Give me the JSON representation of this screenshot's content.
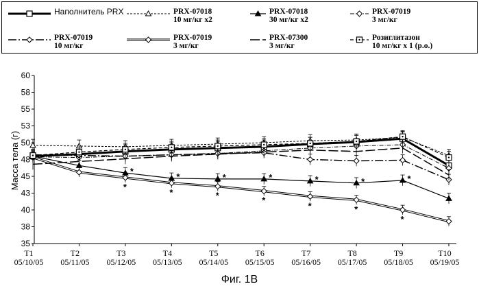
{
  "caption": "Фиг. 1В",
  "chart_data": {
    "type": "line",
    "title": "",
    "xlabel": "",
    "ylabel": "Масса тела (г)",
    "ylim": [
      35,
      60
    ],
    "y_ticks": [
      "35",
      "38",
      "40",
      "43",
      "45",
      "48",
      "50",
      "53",
      "55",
      "58",
      "60"
    ],
    "categories": [
      {
        "label": "T1",
        "date": "05/10/05"
      },
      {
        "label": "T2",
        "date": "05/11/05"
      },
      {
        "label": "T3",
        "date": "05/12/05"
      },
      {
        "label": "T4",
        "date": "05/13/05"
      },
      {
        "label": "T5",
        "date": "05/14/05"
      },
      {
        "label": "T6",
        "date": "05/15/05"
      },
      {
        "label": "T7",
        "date": "05/16/05"
      },
      {
        "label": "T8",
        "date": "05/17/05"
      },
      {
        "label": "T9",
        "date": "05/18/05"
      },
      {
        "label": "T10",
        "date": "05/19/05"
      }
    ],
    "grid": false,
    "legend_position": "top",
    "significance_marker": "*",
    "series": [
      {
        "legend_line1": "Наполнитель PRX",
        "legend_line2": "",
        "style": "thick",
        "marker": "square",
        "values": [
          48,
          48.3,
          48.7,
          49,
          49.2,
          49.4,
          49.8,
          50.1,
          50.6,
          46.6
        ],
        "errors": 1.0,
        "marked": []
      },
      {
        "legend_line1": "PRX-07018",
        "legend_line2": "10 мг/кг  x2",
        "style": "dashed-fine",
        "marker": "triangle-open",
        "values": [
          49.6,
          49.5,
          49.4,
          49.6,
          49.8,
          50,
          50.3,
          50.4,
          50.8,
          48.1
        ],
        "errors": 0.9,
        "marked": []
      },
      {
        "legend_line1": "PRX-07018",
        "legend_line2": "30 мг/кг  x2",
        "style": "solid",
        "marker": "triangle-filled",
        "values": [
          48,
          46.6,
          45.5,
          44.7,
          44.6,
          44.6,
          44.3,
          44,
          44.4,
          41.7
        ],
        "errors": 0.8,
        "marked": [
          2,
          3,
          4,
          5,
          6,
          7,
          8
        ]
      },
      {
        "legend_line1": "PRX-07019",
        "legend_line2": "3 мг/кг",
        "style": "dashdot",
        "marker": "diamond-open",
        "values": [
          47.9,
          47.8,
          48,
          48.2,
          48.4,
          48.8,
          49.2,
          49.5,
          49.7,
          46.2
        ],
        "errors": 0.8,
        "marked": []
      },
      {
        "legend_line1": "PRX-07019",
        "legend_line2": "10 мг/кг",
        "style": "dashdot-long",
        "marker": "diamond-open",
        "values": [
          48.2,
          48.1,
          48,
          48.2,
          48.4,
          48.5,
          47.5,
          47.3,
          47.4,
          44.5
        ],
        "errors": 0.8,
        "marked": []
      },
      {
        "legend_line1": "PRX-07019",
        "legend_line2": "3 мг/кг",
        "style": "double",
        "marker": "diamond-open",
        "values": [
          47.8,
          45.6,
          44.8,
          44,
          43.5,
          42.8,
          42,
          41.5,
          40,
          38.3
        ],
        "errors": 0.7,
        "marked": [
          2,
          3,
          4,
          5,
          6,
          7,
          8
        ]
      },
      {
        "legend_line1": "PRX-07300",
        "legend_line2": "3 мг/кг",
        "style": "longdash",
        "marker": "none",
        "values": [
          46.8,
          47.2,
          47.6,
          48,
          48.3,
          48.6,
          48.9,
          48.7,
          49.2,
          45.2
        ],
        "errors": 0.8,
        "marked": []
      },
      {
        "legend_line1": "Розиглитазон",
        "legend_line2": "10 мг/кг  x 1 (p.o.)",
        "style": "dashed",
        "marker": "square-dot",
        "values": [
          48.1,
          48.6,
          49,
          49.3,
          49.5,
          49.7,
          49.9,
          50.2,
          50.9,
          47.8
        ],
        "errors": 0.9,
        "marked": []
      }
    ]
  }
}
